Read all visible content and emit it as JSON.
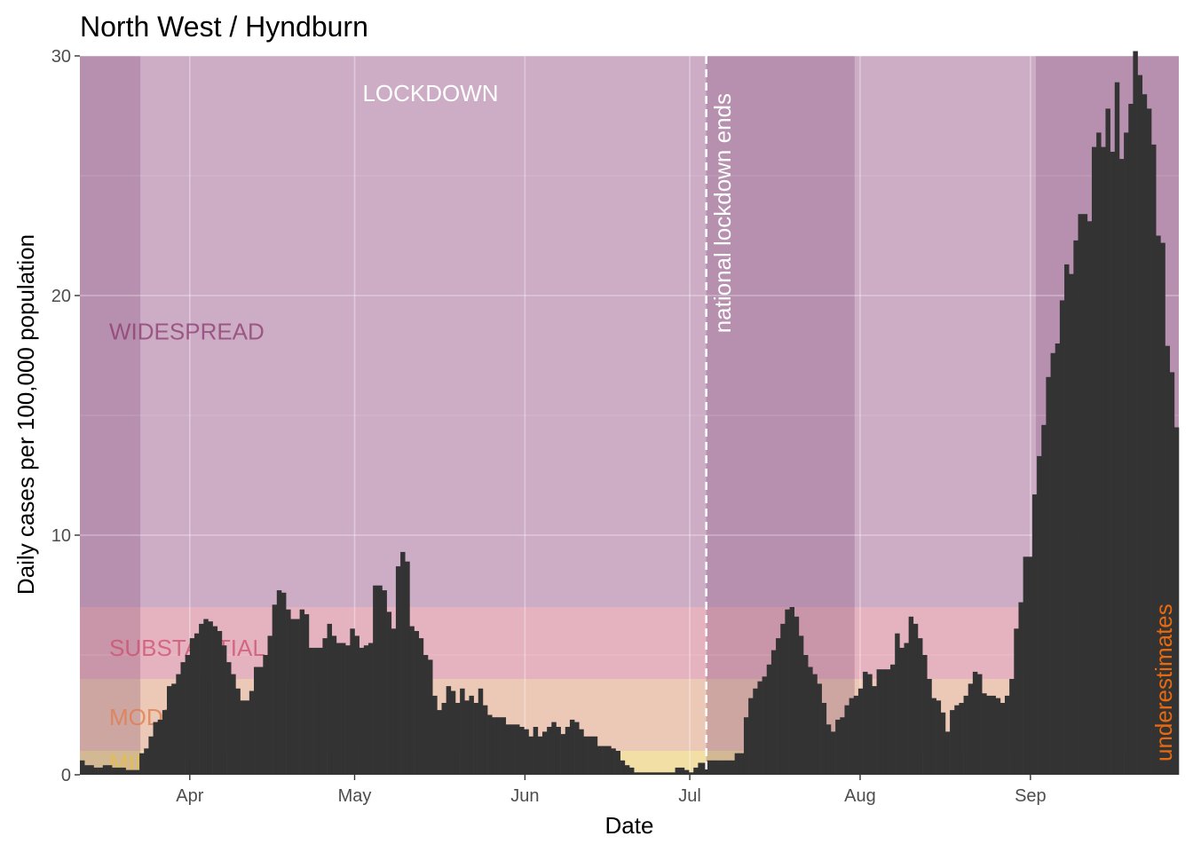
{
  "chart_data": {
    "type": "bar",
    "title": "North West / Hyndburn",
    "xlabel": "Date",
    "ylabel": "Daily cases per 100,000 population",
    "ylim": [
      0,
      30
    ],
    "x_range": [
      "2020-03-12",
      "2020-09-28"
    ],
    "y_ticks": [
      {
        "value": 0,
        "label": "0"
      },
      {
        "value": 10,
        "label": "10"
      },
      {
        "value": 20,
        "label": "20"
      },
      {
        "value": 30,
        "label": "30"
      }
    ],
    "x_ticks": [
      {
        "date": "2020-04-01",
        "label": "Apr"
      },
      {
        "date": "2020-05-01",
        "label": "May"
      },
      {
        "date": "2020-06-01",
        "label": "Jun"
      },
      {
        "date": "2020-07-01",
        "label": "Jul"
      },
      {
        "date": "2020-08-01",
        "label": "Aug"
      },
      {
        "date": "2020-09-01",
        "label": "Sep"
      }
    ],
    "bands": [
      {
        "label": "MINIMAL",
        "from": 0,
        "to": 1,
        "color": "#f2dfa6",
        "label_color": "#e6c040",
        "label_y": 0.5
      },
      {
        "label": "MODERATE",
        "from": 1,
        "to": 4,
        "color": "#ecc8b6",
        "label_color": "#e0794a",
        "label_y": 2.4
      },
      {
        "label": "SUBSTANTIAL",
        "from": 4,
        "to": 7,
        "color": "#e5b3c0",
        "label_color": "#cc4d6e",
        "label_y": 5.3
      },
      {
        "label": "WIDESPREAD",
        "from": 7,
        "to": 30,
        "color": "#cdadc6",
        "label_color": "#8b3a6e",
        "label_y": 18.5
      }
    ],
    "shaded_periods": [
      {
        "from": "2020-03-12",
        "to": "2020-03-23"
      },
      {
        "from": "2020-07-04",
        "to": "2020-07-31"
      },
      {
        "from": "2020-09-02",
        "to": "2020-09-28"
      }
    ],
    "lockdown_label": "LOCKDOWN",
    "vline": {
      "date": "2020-07-04",
      "label": "national lockdown ends"
    },
    "underestimates_label": "underestimates",
    "underestimates_color": "#e86a10",
    "bar_color": "#333333",
    "values": [
      0.6,
      0.4,
      0.4,
      0.3,
      0.3,
      0.4,
      0.4,
      0.3,
      0.3,
      0.3,
      0.2,
      0.2,
      0.2,
      0.9,
      1.1,
      1.6,
      2.2,
      2.3,
      2.7,
      3.7,
      3.8,
      4.2,
      4.7,
      5.0,
      5.7,
      5.9,
      6.3,
      6.5,
      6.4,
      6.2,
      6.0,
      5.4,
      4.7,
      4.2,
      3.6,
      3.1,
      3.1,
      3.5,
      4.5,
      4.5,
      5.0,
      5.8,
      7.1,
      7.7,
      7.6,
      6.9,
      6.5,
      6.5,
      6.9,
      6.7,
      5.3,
      5.3,
      5.3,
      5.7,
      6.3,
      5.8,
      5.5,
      5.5,
      5.4,
      6.1,
      5.8,
      5.3,
      5.4,
      5.5,
      7.9,
      7.9,
      7.7,
      6.8,
      6.1,
      8.7,
      9.3,
      8.9,
      6.2,
      6.0,
      5.7,
      5.0,
      4.8,
      3.3,
      2.7,
      3.0,
      3.7,
      3.5,
      3.0,
      3.6,
      3.1,
      3.3,
      3.0,
      3.6,
      2.9,
      2.5,
      2.4,
      2.4,
      2.4,
      2.1,
      2.1,
      2.1,
      2.0,
      1.9,
      1.6,
      2.0,
      1.6,
      1.8,
      2.0,
      2.2,
      2.0,
      1.7,
      2.0,
      2.3,
      2.2,
      1.9,
      1.6,
      1.6,
      1.6,
      1.2,
      1.2,
      1.2,
      1.1,
      1.0,
      0.6,
      0.4,
      0.3,
      0.1,
      0.1,
      0.1,
      0.1,
      0.1,
      0.1,
      0.1,
      0.1,
      0.1,
      0.3,
      0.3,
      0.2,
      0.1,
      0.3,
      0.5,
      0.5,
      0.6,
      0.6,
      0.6,
      0.6,
      0.6,
      0.6,
      0.9,
      0.9,
      2.4,
      3.2,
      3.6,
      3.9,
      4.1,
      4.6,
      5.2,
      5.7,
      6.3,
      6.9,
      7.0,
      6.6,
      5.8,
      5.0,
      4.5,
      4.2,
      3.8,
      3.0,
      2.1,
      1.8,
      2.3,
      2.4,
      2.9,
      3.2,
      3.3,
      3.6,
      4.3,
      4.2,
      3.7,
      4.4,
      4.4,
      4.4,
      4.6,
      5.9,
      5.3,
      5.5,
      6.6,
      6.3,
      5.7,
      5.0,
      4.0,
      3.2,
      3.1,
      2.6,
      1.8,
      2.7,
      2.9,
      3.0,
      3.3,
      3.8,
      4.3,
      4.2,
      3.4,
      3.3,
      3.3,
      3.2,
      3.0,
      3.3,
      4.0,
      6.1,
      7.2,
      9.1,
      9.1,
      11.7,
      13.3,
      14.6,
      16.6,
      17.6,
      18.0,
      19.8,
      21.3,
      20.9,
      22.3,
      23.4,
      23.4,
      23.1,
      26.2,
      26.8,
      26.2,
      27.8,
      26.0,
      28.9,
      25.7,
      26.8,
      28.0,
      30.2,
      29.2,
      28.4,
      27.8,
      26.3,
      22.5,
      22.2,
      17.9,
      16.8,
      14.5
    ]
  }
}
